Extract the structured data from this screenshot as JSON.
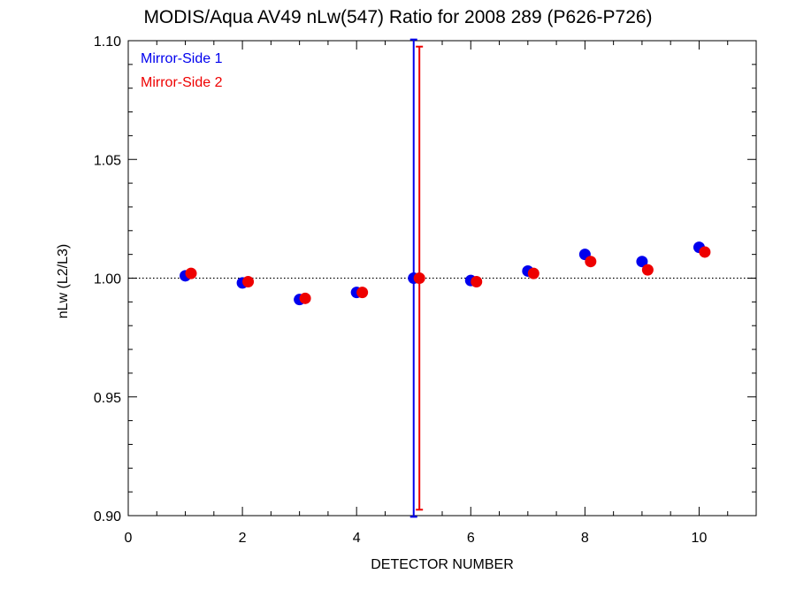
{
  "chart_data": {
    "type": "scatter",
    "title": "MODIS/Aqua AV49 nLw(547) Ratio for 2008 289 (P626-P726)",
    "xlabel": "DETECTOR NUMBER",
    "ylabel": "nLw (L2/L3)",
    "xlim": [
      0,
      11
    ],
    "ylim": [
      0.9,
      1.1
    ],
    "xticks": [
      0,
      2,
      4,
      6,
      8,
      10
    ],
    "xtick_labels": [
      "0",
      "2",
      "4",
      "6",
      "8",
      "10"
    ],
    "yticks": [
      0.9,
      0.95,
      1.0,
      1.05,
      1.1
    ],
    "ytick_labels": [
      "0.90",
      "0.95",
      "1.00",
      "1.05",
      "1.10"
    ],
    "reference_line": 1.0,
    "legend_placement": "top-left",
    "series": [
      {
        "name": "Mirror-Side 1",
        "color": "#0000ee",
        "x": [
          1,
          2,
          3,
          4,
          5,
          6,
          7,
          8,
          9,
          10
        ],
        "y": [
          1.001,
          0.998,
          0.991,
          0.994,
          1.0,
          0.999,
          1.003,
          1.01,
          1.007,
          1.013
        ],
        "error_bars": [
          {
            "x": 5,
            "low": 0.8995,
            "high": 1.1005
          }
        ]
      },
      {
        "name": "Mirror-Side 2",
        "color": "#ee0000",
        "x": [
          1.1,
          2.1,
          3.1,
          4.1,
          5.1,
          6.1,
          7.1,
          8.1,
          9.1,
          10.1
        ],
        "y": [
          1.002,
          0.9985,
          0.9915,
          0.994,
          1.0,
          0.9985,
          1.002,
          1.007,
          1.0035,
          1.011
        ],
        "error_bars": [
          {
            "x": 5.1,
            "low": 0.9025,
            "high": 1.0975
          }
        ]
      }
    ]
  }
}
